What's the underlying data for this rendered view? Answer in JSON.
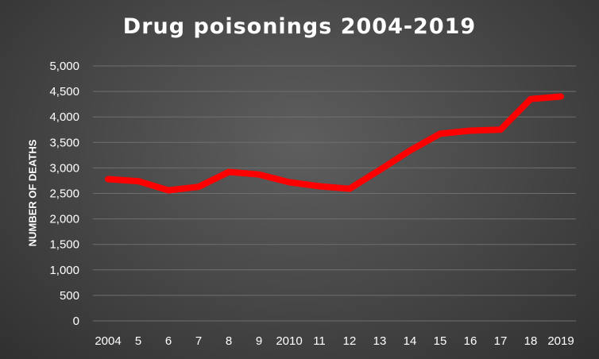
{
  "chart_data": {
    "type": "line",
    "title": "Drug poisonings 2004-2019",
    "xlabel": "",
    "ylabel": "NUMBER OF DEATHS",
    "categories": [
      "2004",
      "5",
      "6",
      "7",
      "8",
      "9",
      "2010",
      "11",
      "12",
      "13",
      "14",
      "15",
      "16",
      "17",
      "18",
      "2019"
    ],
    "series": [
      {
        "values": [
          2780,
          2740,
          2560,
          2630,
          2920,
          2870,
          2720,
          2640,
          2590,
          2960,
          3340,
          3670,
          3730,
          3750,
          4350,
          4400
        ]
      }
    ],
    "ylim": [
      0,
      5000
    ],
    "yticks": [
      0,
      500,
      1000,
      1500,
      2000,
      2500,
      3000,
      3500,
      4000,
      4500,
      5000
    ],
    "ytick_labels": [
      "0",
      "500",
      "1,000",
      "1,500",
      "2,000",
      "2,500",
      "3,000",
      "3,500",
      "4,000",
      "4,500",
      "5,000"
    ],
    "grid": true,
    "legend": "none",
    "colors": {
      "line": "#ff0000",
      "grid": "#6f6f6f",
      "text": "#ffffff"
    }
  }
}
